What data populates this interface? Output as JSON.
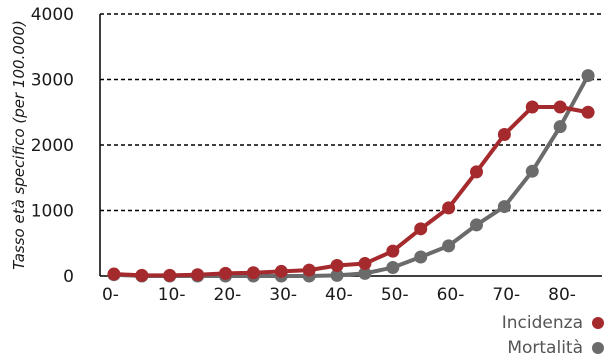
{
  "chart_data": {
    "type": "line",
    "ylabel": "Tasso età specifico (per 100.000)",
    "xlabel": "",
    "title": "",
    "x_tick_labels": [
      "0-",
      "10-",
      "20-",
      "30-",
      "40-",
      "50-",
      "60-",
      "70-",
      "80-"
    ],
    "y_tick_labels": [
      "0",
      "1000",
      "2000",
      "3000",
      "4000"
    ],
    "ylim": [
      0,
      4000
    ],
    "grid": "horizontal dashed",
    "legend_position": "bottom-right",
    "x": [
      0,
      5,
      10,
      15,
      20,
      25,
      30,
      35,
      40,
      45,
      50,
      55,
      60,
      65,
      70,
      75,
      80,
      85
    ],
    "series": [
      {
        "name": "Incidenza",
        "color": "#a52a2e",
        "values": [
          30,
          10,
          10,
          20,
          40,
          50,
          70,
          90,
          160,
          190,
          380,
          720,
          1040,
          1590,
          2160,
          2580,
          2580,
          2500
        ]
      },
      {
        "name": "Mortalità",
        "color": "#6b6b6b",
        "values": [
          20,
          0,
          0,
          0,
          0,
          0,
          0,
          0,
          10,
          40,
          130,
          290,
          460,
          780,
          1060,
          1600,
          2280,
          3060
        ]
      }
    ]
  }
}
